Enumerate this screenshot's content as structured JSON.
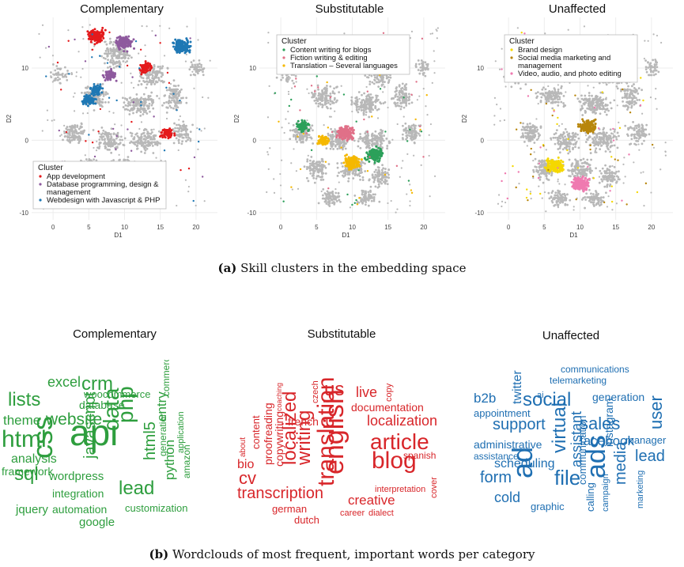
{
  "figure": {
    "caption_a_label": "(a)",
    "caption_a_text": " Skill clusters in the embedding space",
    "caption_b_label": "(b)",
    "caption_b_text": " Wordclouds of most frequent, important words per category"
  },
  "chart_data": [
    {
      "type": "scatter",
      "title": "Complementary",
      "xlabel": "D1",
      "ylabel": "D2",
      "xlim": [
        -3,
        23
      ],
      "ylim": [
        -11,
        17
      ],
      "xticks": [
        0,
        5,
        10,
        15,
        20
      ],
      "yticks": [
        -10,
        0,
        10
      ],
      "grid": true,
      "legend_title": "Cluster",
      "legend_position": "bottom-right",
      "background_color": "#b8b8b8",
      "series": [
        {
          "name": "App development",
          "color": "#e41a1c",
          "centers": [
            [
              6,
              14.5
            ],
            [
              13,
              10
            ],
            [
              16,
              1
            ]
          ]
        },
        {
          "name": "Database programming, design & management",
          "color": "#8e5a9e",
          "centers": [
            [
              10,
              13.5
            ],
            [
              8,
              9
            ]
          ]
        },
        {
          "name": "Webdesign with Javascript & PHP",
          "color": "#1f78b4",
          "centers": [
            [
              18,
              13
            ],
            [
              6,
              7
            ],
            [
              5,
              5.5
            ]
          ]
        }
      ]
    },
    {
      "type": "scatter",
      "title": "Substitutable",
      "xlabel": "D1",
      "ylabel": "D2",
      "xlim": [
        -3,
        23
      ],
      "ylim": [
        -11,
        17
      ],
      "xticks": [
        0,
        5,
        10,
        15,
        20
      ],
      "yticks": [
        -10,
        0,
        10
      ],
      "grid": true,
      "legend_title": "Cluster",
      "legend_position": "top-right",
      "background_color": "#b8b8b8",
      "series": [
        {
          "name": "Content writing for blogs",
          "color": "#2ca05a",
          "centers": [
            [
              13,
              -2
            ],
            [
              3,
              2
            ]
          ]
        },
        {
          "name": "Fiction writing & editing",
          "color": "#e07088",
          "centers": [
            [
              9,
              1
            ]
          ]
        },
        {
          "name": "Translation – Several languages",
          "color": "#f5b800",
          "centers": [
            [
              10,
              -3
            ],
            [
              6,
              0
            ]
          ]
        }
      ]
    },
    {
      "type": "scatter",
      "title": "Unaffected",
      "xlabel": "D1",
      "ylabel": "D2",
      "xlim": [
        -3,
        23
      ],
      "ylim": [
        -11,
        17
      ],
      "xticks": [
        0,
        5,
        10,
        15,
        20
      ],
      "yticks": [
        -10,
        0,
        10
      ],
      "grid": true,
      "legend_title": "Cluster",
      "legend_position": "top-right",
      "background_color": "#b8b8b8",
      "series": [
        {
          "name": "Brand design",
          "color": "#f5d800",
          "centers": [
            [
              6.5,
              -3.5
            ]
          ]
        },
        {
          "name": "Social media marketing and management",
          "color": "#b8860b",
          "centers": [
            [
              11,
              2
            ]
          ]
        },
        {
          "name": "Video, audio, and photo editing",
          "color": "#ef7ab0",
          "centers": [
            [
              10,
              -6
            ]
          ]
        }
      ]
    }
  ],
  "wordclouds": [
    {
      "title": "Complementary",
      "color": "#2e9e3e",
      "words": [
        {
          "text": "api",
          "size": 46,
          "vertical": false
        },
        {
          "text": "css",
          "size": 36,
          "vertical": true
        },
        {
          "text": "html",
          "size": 30,
          "vertical": false
        },
        {
          "text": "data",
          "size": 28,
          "vertical": true
        },
        {
          "text": "php",
          "size": 28,
          "vertical": true
        },
        {
          "text": "lists",
          "size": 24,
          "vertical": false
        },
        {
          "text": "crm",
          "size": 24,
          "vertical": false
        },
        {
          "text": "sql",
          "size": 24,
          "vertical": false
        },
        {
          "text": "lead",
          "size": 24,
          "vertical": false
        },
        {
          "text": "website",
          "size": 21,
          "vertical": false
        },
        {
          "text": "javascript",
          "size": 20,
          "vertical": true
        },
        {
          "text": "html5",
          "size": 20,
          "vertical": true
        },
        {
          "text": "excel",
          "size": 18,
          "vertical": false
        },
        {
          "text": "theme",
          "size": 17,
          "vertical": false
        },
        {
          "text": "python",
          "size": 17,
          "vertical": true
        },
        {
          "text": "entry",
          "size": 17,
          "vertical": true
        },
        {
          "text": "analysis",
          "size": 16,
          "vertical": false
        },
        {
          "text": "wordpress",
          "size": 15,
          "vertical": false
        },
        {
          "text": "jquery",
          "size": 15,
          "vertical": false
        },
        {
          "text": "google",
          "size": 15,
          "vertical": false
        },
        {
          "text": "database",
          "size": 14,
          "vertical": false
        },
        {
          "text": "framework",
          "size": 14,
          "vertical": false
        },
        {
          "text": "integration",
          "size": 14,
          "vertical": false
        },
        {
          "text": "automation",
          "size": 14,
          "vertical": false
        },
        {
          "text": "woocommerce",
          "size": 13,
          "vertical": false
        },
        {
          "text": "customization",
          "size": 13,
          "vertical": false
        },
        {
          "text": "commerce",
          "size": 12,
          "vertical": true
        },
        {
          "text": "generation",
          "size": 12,
          "vertical": true
        },
        {
          "text": "application",
          "size": 11,
          "vertical": true
        },
        {
          "text": "amazon",
          "size": 12,
          "vertical": true
        }
      ]
    },
    {
      "title": "Substitutable",
      "color": "#d8262a",
      "words": [
        {
          "text": "english",
          "size": 34,
          "vertical": true
        },
        {
          "text": "translation",
          "size": 30,
          "vertical": true
        },
        {
          "text": "blog",
          "size": 30,
          "vertical": false
        },
        {
          "text": "article",
          "size": 28,
          "vertical": false
        },
        {
          "text": "writing",
          "size": 24,
          "vertical": true
        },
        {
          "text": "localized",
          "size": 24,
          "vertical": true
        },
        {
          "text": "us",
          "size": 24,
          "vertical": false
        },
        {
          "text": "cv",
          "size": 22,
          "vertical": false
        },
        {
          "text": "transcription",
          "size": 20,
          "vertical": false
        },
        {
          "text": "localization",
          "size": 18,
          "vertical": false
        },
        {
          "text": "live",
          "size": 18,
          "vertical": false
        },
        {
          "text": "creative",
          "size": 17,
          "vertical": false
        },
        {
          "text": "bio",
          "size": 16,
          "vertical": false
        },
        {
          "text": "proofreading",
          "size": 14,
          "vertical": true
        },
        {
          "text": "copywriting",
          "size": 14,
          "vertical": true
        },
        {
          "text": "documentation",
          "size": 14,
          "vertical": false
        },
        {
          "text": "french",
          "size": 14,
          "vertical": false
        },
        {
          "text": "content",
          "size": 13,
          "vertical": true
        },
        {
          "text": "german",
          "size": 13,
          "vertical": false
        },
        {
          "text": "dutch",
          "size": 13,
          "vertical": false
        },
        {
          "text": "spanish",
          "size": 12,
          "vertical": false
        },
        {
          "text": "interpretation",
          "size": 11,
          "vertical": false
        },
        {
          "text": "career",
          "size": 11,
          "vertical": false
        },
        {
          "text": "dialect",
          "size": 11,
          "vertical": false
        },
        {
          "text": "cover",
          "size": 11,
          "vertical": true
        },
        {
          "text": "copy",
          "size": 11,
          "vertical": true
        },
        {
          "text": "czech",
          "size": 11,
          "vertical": true
        },
        {
          "text": "about",
          "size": 10,
          "vertical": true
        },
        {
          "text": "coaching",
          "size": 9,
          "vertical": true
        }
      ]
    },
    {
      "title": "Unaffected",
      "color": "#1f6fb2",
      "words": [
        {
          "text": "ad",
          "size": 36,
          "vertical": true
        },
        {
          "text": "ads",
          "size": 34,
          "vertical": true
        },
        {
          "text": "file",
          "size": 26,
          "vertical": false
        },
        {
          "text": "virtual",
          "size": 24,
          "vertical": true
        },
        {
          "text": "social",
          "size": 24,
          "vertical": false
        },
        {
          "text": "sales",
          "size": 22,
          "vertical": false
        },
        {
          "text": "user",
          "size": 22,
          "vertical": true
        },
        {
          "text": "media",
          "size": 20,
          "vertical": true
        },
        {
          "text": "lead",
          "size": 20,
          "vertical": false
        },
        {
          "text": "form",
          "size": 20,
          "vertical": false
        },
        {
          "text": "support",
          "size": 20,
          "vertical": false
        },
        {
          "text": "assistant",
          "size": 18,
          "vertical": true
        },
        {
          "text": "cold",
          "size": 18,
          "vertical": false
        },
        {
          "text": "facebook",
          "size": 17,
          "vertical": false
        },
        {
          "text": "b2b",
          "size": 17,
          "vertical": false
        },
        {
          "text": "twitter",
          "size": 16,
          "vertical": true
        },
        {
          "text": "scheduling",
          "size": 16,
          "vertical": false
        },
        {
          "text": "instagram",
          "size": 14,
          "vertical": true
        },
        {
          "text": "generation",
          "size": 14,
          "vertical": false
        },
        {
          "text": "administrative",
          "size": 14,
          "vertical": false
        },
        {
          "text": "communication",
          "size": 13,
          "vertical": true
        },
        {
          "text": "appointment",
          "size": 13,
          "vertical": false
        },
        {
          "text": "graphic",
          "size": 13,
          "vertical": false
        },
        {
          "text": "manager",
          "size": 13,
          "vertical": false
        },
        {
          "text": "calling",
          "size": 13,
          "vertical": true
        },
        {
          "text": "assistance",
          "size": 12,
          "vertical": false
        },
        {
          "text": "telemarketing",
          "size": 12,
          "vertical": false
        },
        {
          "text": "communications",
          "size": 12,
          "vertical": false
        },
        {
          "text": "campaign",
          "size": 11,
          "vertical": true
        },
        {
          "text": "marketing",
          "size": 11,
          "vertical": true
        },
        {
          "text": "ai",
          "size": 11,
          "vertical": false
        }
      ]
    }
  ]
}
